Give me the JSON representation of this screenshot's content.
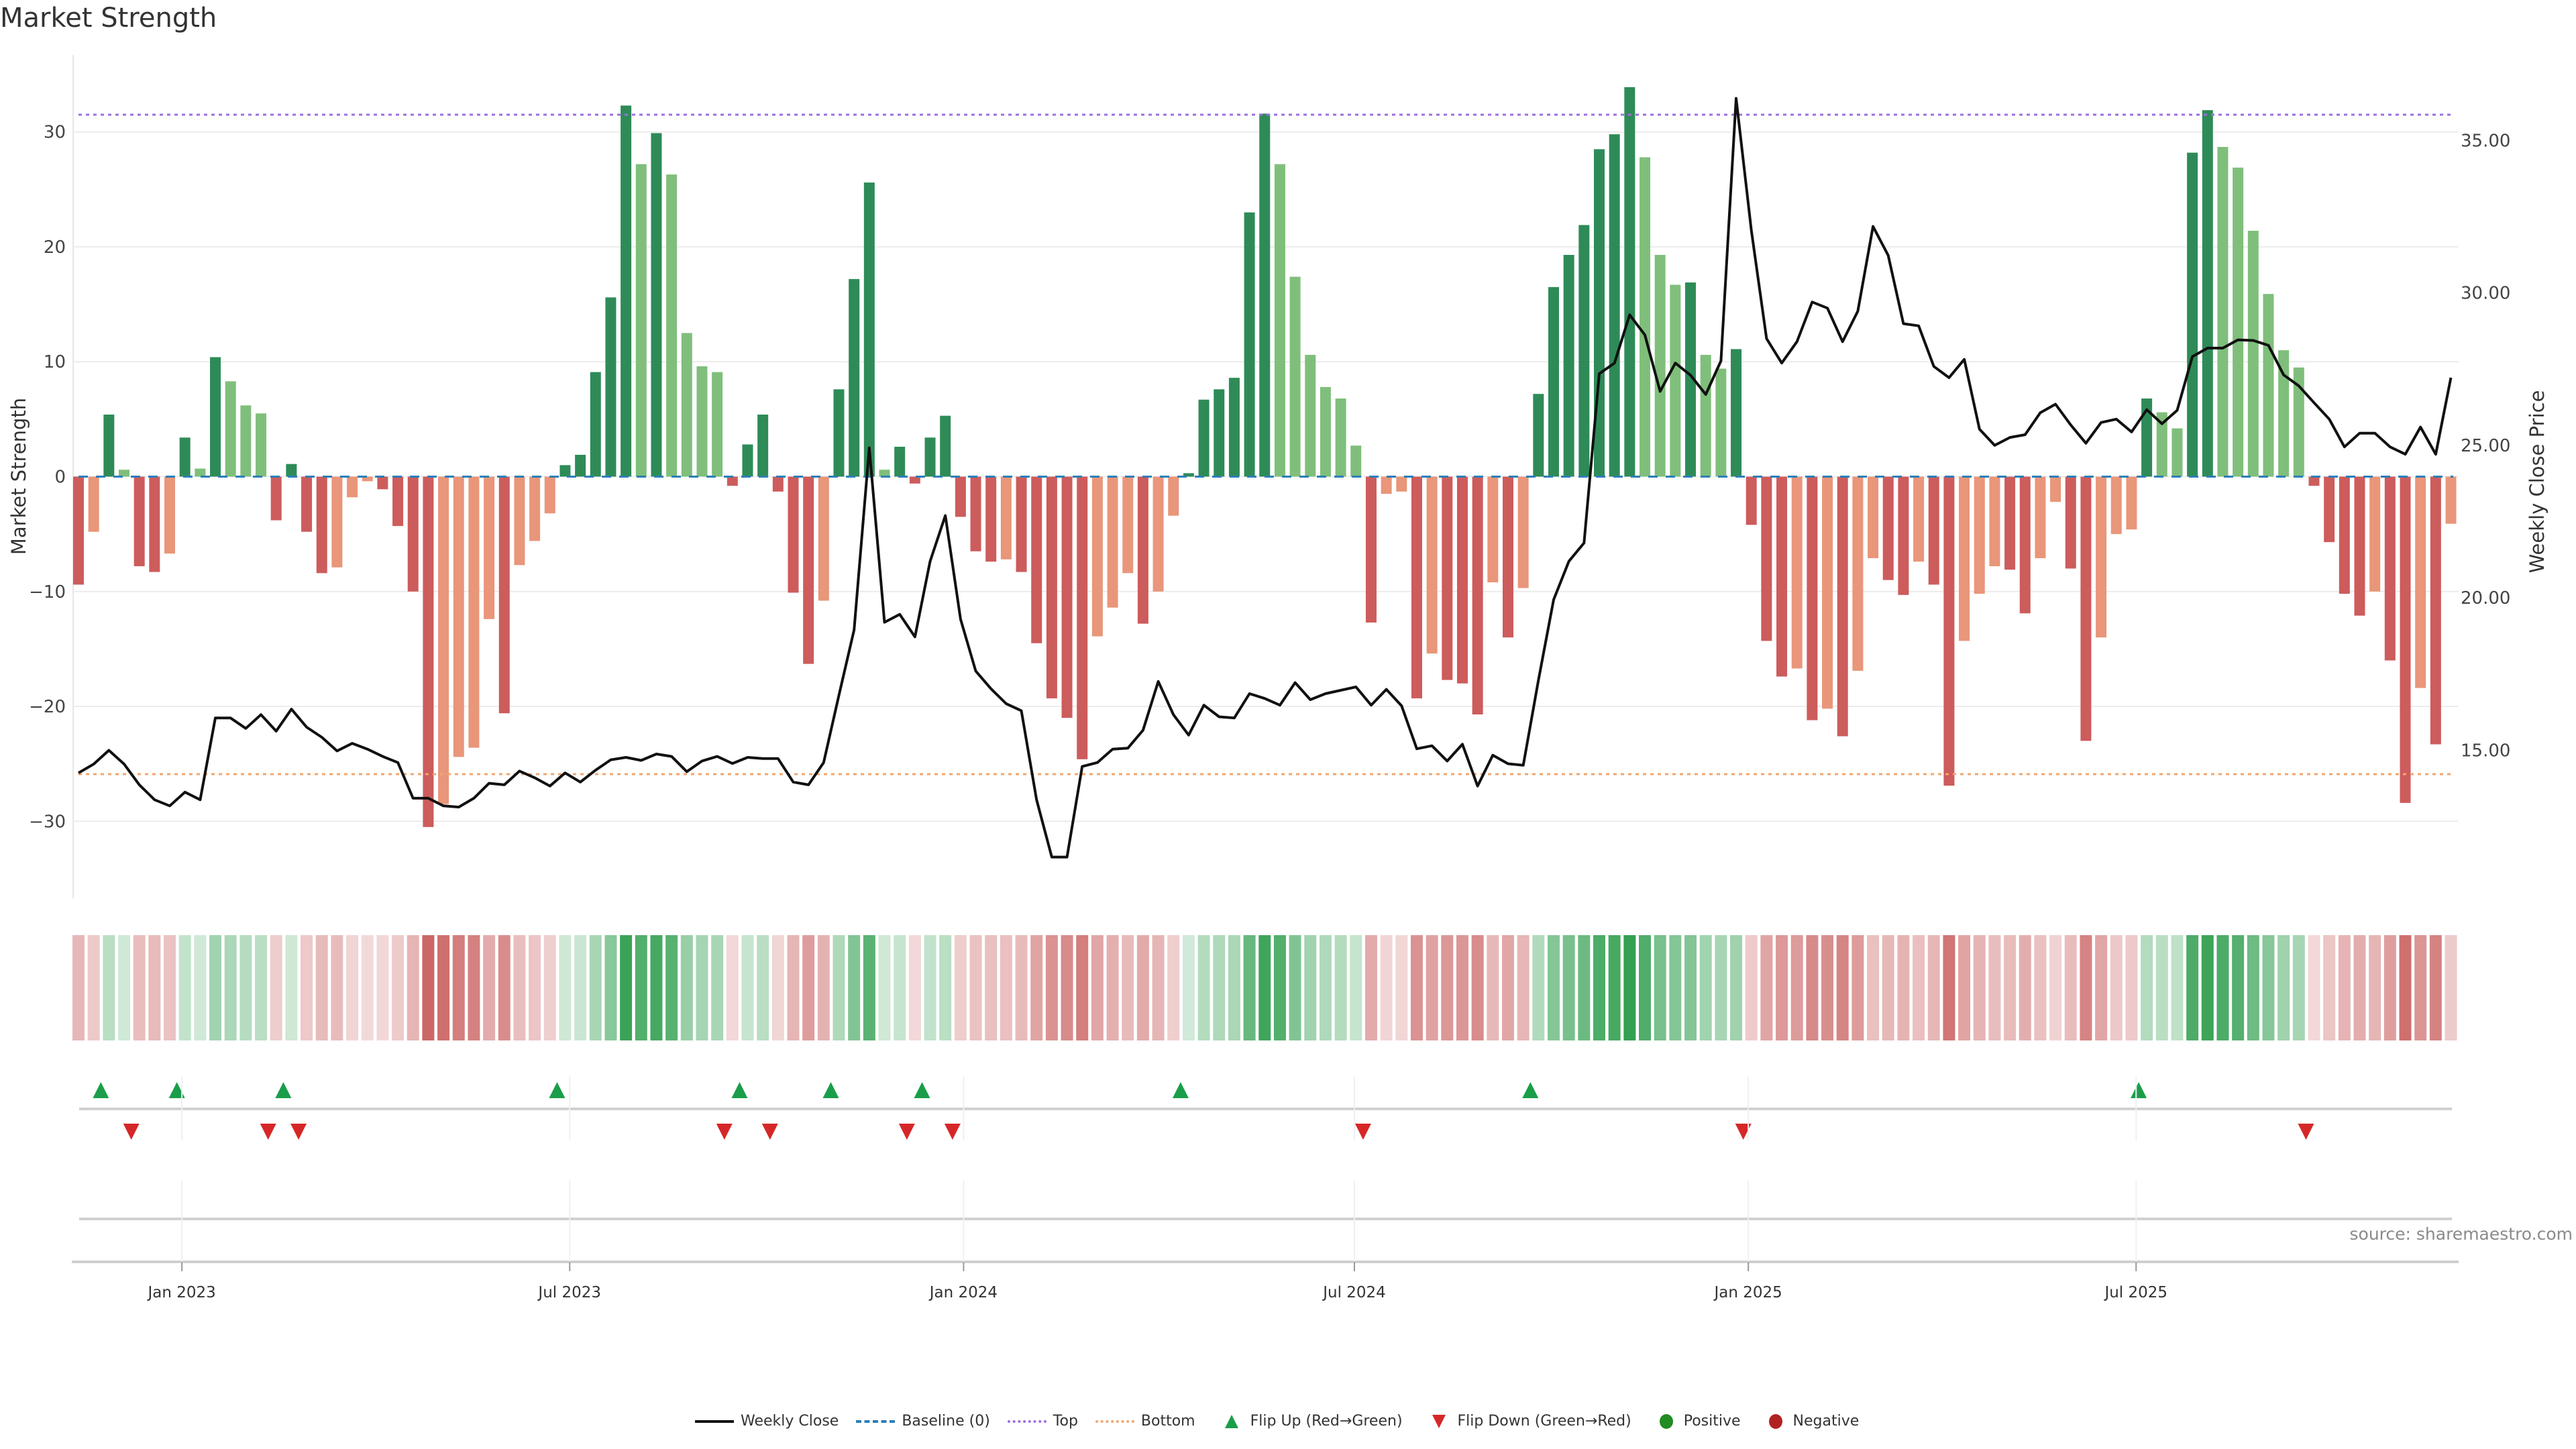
{
  "title": "Market Strength",
  "source": "source: sharemaestro.com",
  "legend": {
    "weekly_close": "Weekly Close",
    "baseline": "Baseline (0)",
    "top": "Top",
    "bottom": "Bottom",
    "flip_up": "Flip Up (Red→Green)",
    "flip_down": "Flip Down (Green→Red)",
    "positive": "Positive",
    "negative": "Negative"
  },
  "colors": {
    "strong_positive": "#2e8b57",
    "weak_positive": "#7fbf7b",
    "strong_negative": "#cd5c5c",
    "weak_negative": "#e9967a",
    "line": "#111111",
    "baseline": "#2c7fb8",
    "top": "#9b6fe0",
    "bottom": "#f0a56e",
    "flip_up": "#1a9e4a",
    "flip_down": "#d62728"
  },
  "chart_data": {
    "type": "bar",
    "title": "Market Strength",
    "ylabel": "Market Strength",
    "y2label": "Weekly Close Price",
    "ylim": [
      -36.7,
      36.7
    ],
    "y2lim": [
      10.15,
      37.8
    ],
    "yticks": [
      -30,
      -20,
      -10,
      0,
      10,
      20,
      30
    ],
    "ytick_labels": [
      "−30",
      "−20",
      "−10",
      "0",
      "10",
      "20",
      "30"
    ],
    "y2ticks": [
      15,
      20,
      25,
      30,
      35
    ],
    "y2tick_labels": [
      "15.00",
      "20.00",
      "25.00",
      "30.00",
      "35.00"
    ],
    "xticks": [
      {
        "label": "Jan 2023",
        "week": 6.8
      },
      {
        "label": "Jul 2023",
        "week": 32.3
      },
      {
        "label": "Jan 2024",
        "week": 58.2
      },
      {
        "label": "Jul 2024",
        "week": 83.9
      },
      {
        "label": "Jan 2025",
        "week": 109.8
      },
      {
        "label": "Jul 2025",
        "week": 135.3
      }
    ],
    "top_level": 31.5,
    "bottom_level": -25.9,
    "baseline": 0,
    "grid": true,
    "legend_position": "bottom-center",
    "strength": [
      -9.4,
      -4.8,
      5.4,
      0.6,
      -7.8,
      -8.3,
      -6.7,
      3.4,
      0.7,
      10.4,
      8.3,
      6.2,
      5.5,
      -3.8,
      1.1,
      -4.8,
      -8.4,
      -7.9,
      -1.8,
      -0.4,
      -1.1,
      -4.3,
      -10,
      -30.5,
      -28.5,
      -24.4,
      -23.6,
      -12.4,
      -20.6,
      -7.7,
      -5.6,
      -3.2,
      1,
      1.9,
      9.1,
      15.6,
      32.3,
      27.2,
      29.9,
      26.3,
      12.5,
      9.6,
      9.1,
      -0.8,
      2.8,
      5.4,
      -1.3,
      -10.1,
      -16.3,
      -10.8,
      7.6,
      17.2,
      25.6,
      0.6,
      2.6,
      -0.6,
      3.4,
      5.3,
      -3.5,
      -6.5,
      -7.4,
      -7.2,
      -8.3,
      -14.5,
      -19.3,
      -21,
      -24.6,
      -13.9,
      -11.4,
      -8.4,
      -12.8,
      -10,
      -3.4,
      0.3,
      6.7,
      7.6,
      8.6,
      23,
      31.6,
      27.2,
      17.4,
      10.6,
      7.8,
      6.8,
      2.7,
      -12.7,
      -1.5,
      -1.3,
      -19.3,
      -15.4,
      -17.7,
      -18,
      -20.7,
      -9.2,
      -14,
      -9.7,
      7.2,
      16.5,
      19.3,
      21.9,
      28.5,
      29.8,
      33.9,
      27.8,
      19.3,
      16.7,
      16.9,
      10.6,
      9.4,
      11.1,
      -4.2,
      -14.3,
      -17.4,
      -16.7,
      -21.2,
      -20.2,
      -22.6,
      -16.9,
      -7.1,
      -9,
      -10.3,
      -7.4,
      -9.4,
      -26.9,
      -14.3,
      -10.2,
      -7.8,
      -8.1,
      -11.9,
      -7.1,
      -2.2,
      -8,
      -23,
      -14,
      -5,
      -4.6,
      6.8,
      5.6,
      4.2,
      28.2,
      31.9,
      28.7,
      26.9,
      21.4,
      15.9,
      11,
      9.5,
      -0.8,
      -5.7,
      -10.2,
      -12.1,
      -10,
      -16,
      -28.4,
      -18.4,
      -23.3,
      -4.1
    ],
    "weekly_close": [
      14.26,
      14.55,
      15.0,
      14.55,
      13.87,
      13.38,
      13.18,
      13.63,
      13.38,
      16.06,
      16.06,
      15.72,
      16.17,
      15.63,
      16.35,
      15.76,
      15.43,
      14.98,
      15.23,
      15.04,
      14.8,
      14.6,
      13.43,
      13.43,
      13.18,
      13.14,
      13.43,
      13.92,
      13.87,
      14.32,
      14.1,
      13.83,
      14.26,
      13.96,
      14.35,
      14.69,
      14.77,
      14.67,
      14.88,
      14.8,
      14.3,
      14.65,
      14.8,
      14.57,
      14.77,
      14.73,
      14.73,
      13.96,
      13.87,
      14.6,
      16.8,
      18.95,
      24.92,
      19.2,
      19.46,
      18.72,
      21.2,
      22.7,
      19.3,
      17.6,
      17.02,
      16.53,
      16.3,
      13.38,
      11.5,
      11.5,
      14.47,
      14.6,
      15.04,
      15.07,
      15.66,
      17.26,
      16.17,
      15.5,
      16.48,
      16.1,
      16.06,
      16.86,
      16.7,
      16.48,
      17.22,
      16.66,
      16.86,
      16.97,
      17.08,
      16.48,
      17.0,
      16.46,
      15.05,
      15.15,
      14.65,
      15.2,
      13.83,
      14.84,
      14.56,
      14.51,
      17.3,
      19.94,
      21.2,
      21.8,
      27.35,
      27.7,
      29.28,
      28.62,
      26.77,
      27.7,
      27.3,
      26.67,
      27.77,
      36.38,
      32.05,
      28.5,
      27.7,
      28.4,
      29.7,
      29.5,
      28.4,
      29.4,
      32.18,
      31.23,
      28.99,
      28.92,
      27.59,
      27.22,
      27.82,
      25.53,
      25.0,
      25.26,
      25.35,
      26.07,
      26.35,
      25.67,
      25.07,
      25.75,
      25.86,
      25.44,
      26.17,
      25.71,
      26.15,
      27.91,
      28.19,
      28.19,
      28.46,
      28.44,
      28.28,
      27.31,
      26.95,
      26.4,
      25.86,
      24.95,
      25.4,
      25.4,
      24.95,
      24.71,
      25.6,
      24.71,
      27.22
    ]
  }
}
